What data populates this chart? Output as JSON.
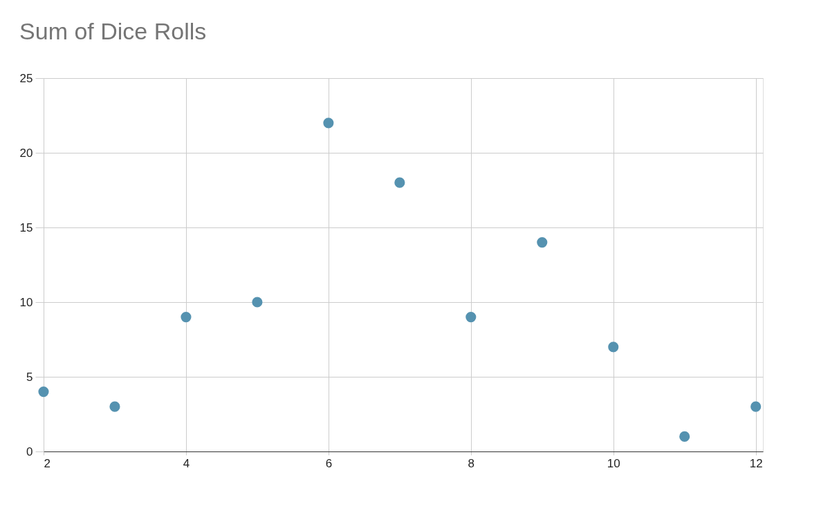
{
  "chart_data": {
    "type": "scatter",
    "title": "Sum of Dice Rolls",
    "x": [
      2,
      3,
      4,
      5,
      6,
      7,
      8,
      9,
      10,
      11,
      12
    ],
    "series": [
      {
        "color": "#5592b0",
        "values": [
          4,
          3,
          9,
          10,
          22,
          18,
          9,
          14,
          7,
          1,
          3
        ]
      }
    ],
    "xlim": [
      2,
      12.1
    ],
    "xticks": [
      2,
      4,
      6,
      8,
      10,
      12
    ],
    "ylim": [
      0,
      25
    ],
    "yticks": [
      0,
      5,
      10,
      15,
      20,
      25
    ],
    "grid": true,
    "marker": "circle"
  }
}
